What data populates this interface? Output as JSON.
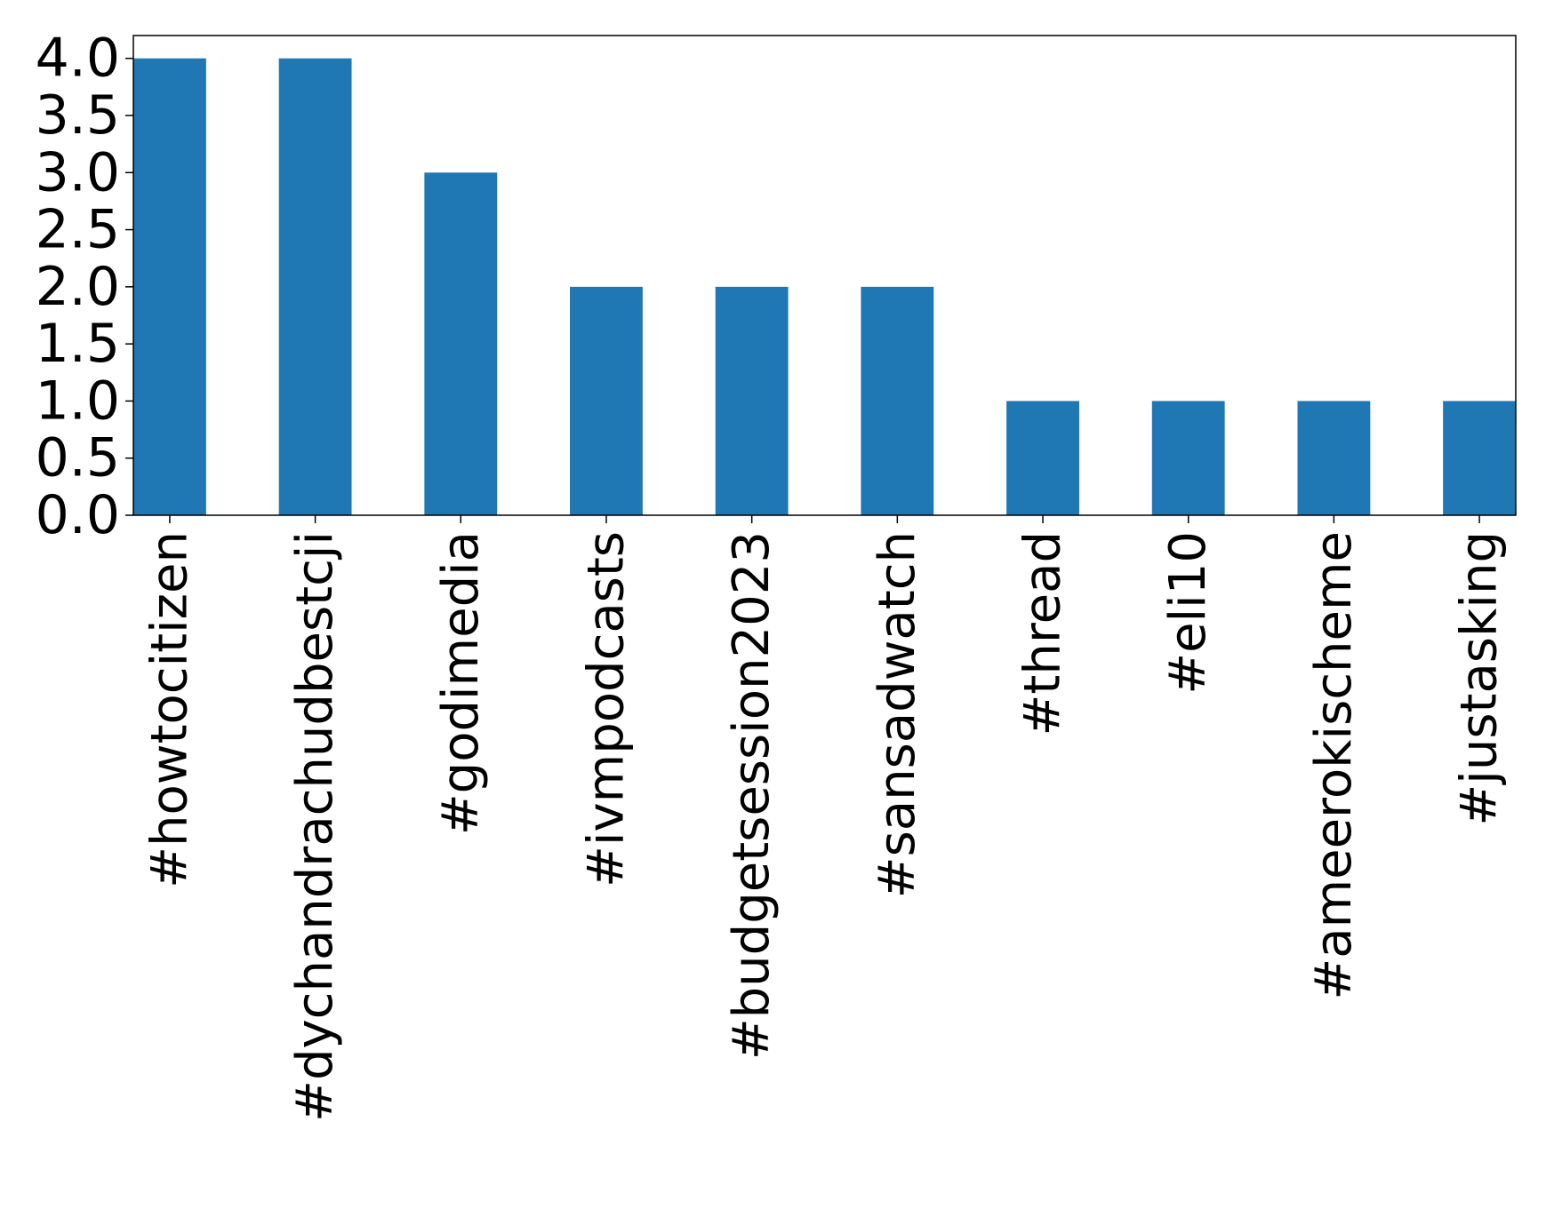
{
  "chart_data": {
    "type": "bar",
    "title": "",
    "xlabel": "",
    "ylabel": "",
    "categories": [
      "#howtocitizen",
      "#dychandrachudbestcji",
      "#godimedia",
      "#ivmpodcasts",
      "#budgetsession2023",
      "#sansadwatch",
      "#thread",
      "#eli10",
      "#ameerokischeme",
      "#justasking"
    ],
    "values": [
      4,
      4,
      3,
      2,
      2,
      2,
      1,
      1,
      1,
      1
    ],
    "ylim": [
      0,
      4.2
    ],
    "yticks": [
      "0.0",
      "0.5",
      "1.0",
      "1.5",
      "2.0",
      "2.5",
      "3.0",
      "3.5",
      "4.0"
    ],
    "grid": false,
    "legend": "none",
    "bar_color": "#1f77b4"
  }
}
